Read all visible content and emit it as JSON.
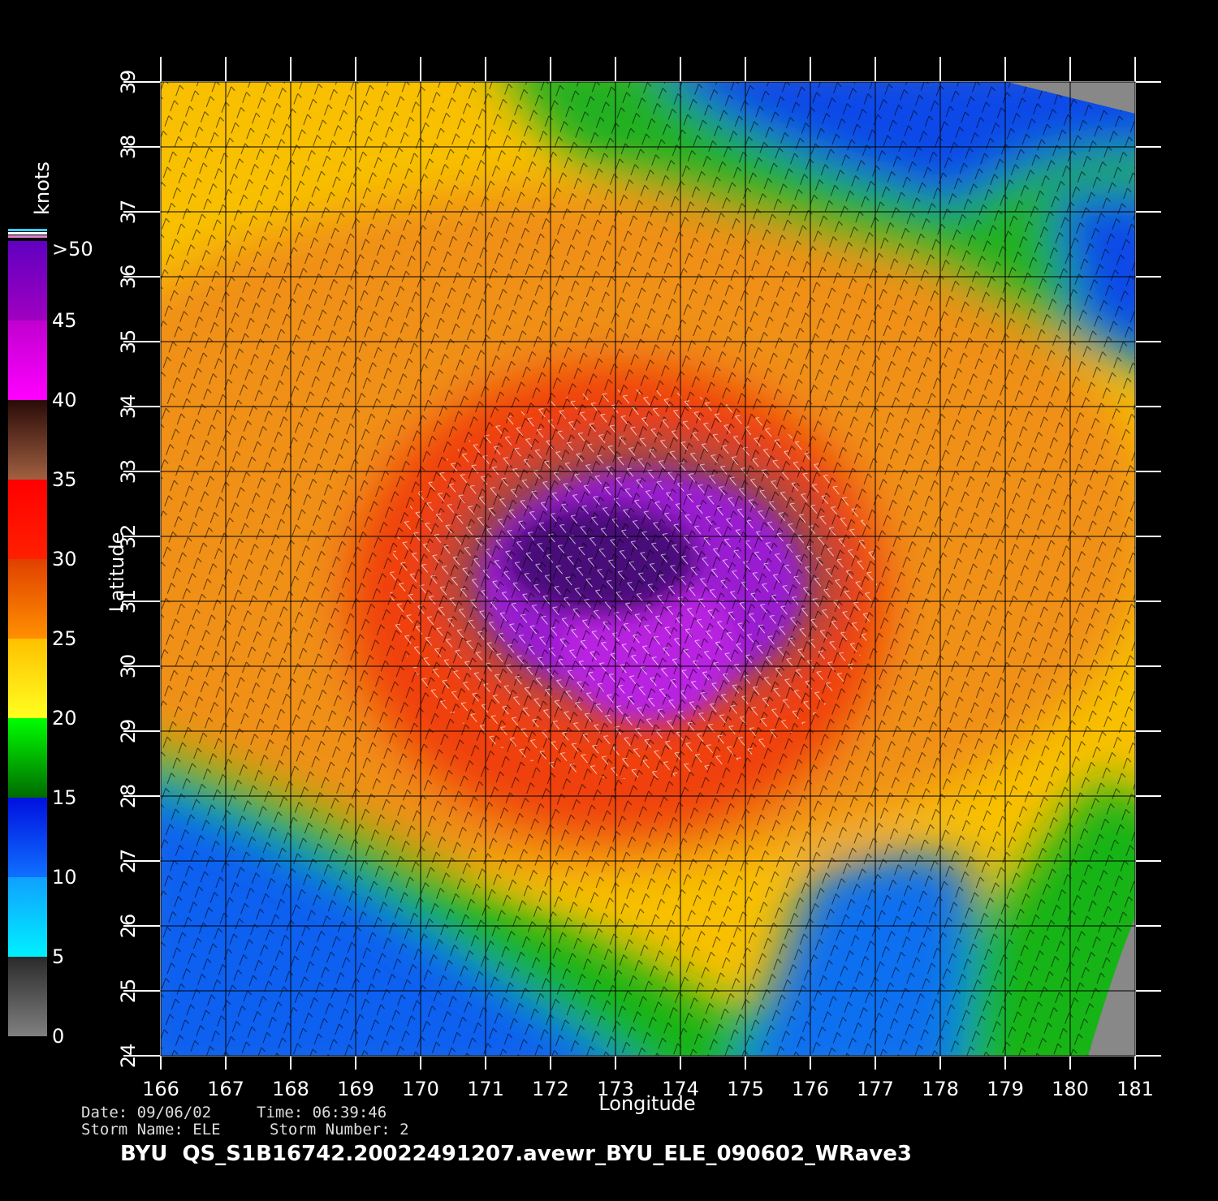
{
  "map": {
    "xlabel": "Longitude",
    "ylabel": "Latitude",
    "xlim": [
      166,
      181
    ],
    "ylim": [
      24,
      39
    ],
    "xticks": [
      166,
      167,
      168,
      169,
      170,
      171,
      172,
      173,
      174,
      175,
      176,
      177,
      178,
      179,
      180,
      181
    ],
    "yticks": [
      24,
      25,
      26,
      27,
      28,
      29,
      30,
      31,
      32,
      33,
      34,
      35,
      36,
      37,
      38,
      39
    ]
  },
  "colorbar": {
    "title": "knots",
    "clim": [
      0,
      50
    ],
    "ticks": [
      0,
      5,
      10,
      15,
      20,
      25,
      30,
      35,
      40,
      45,
      {
        "value": 50,
        "label": ">50"
      }
    ]
  },
  "info": {
    "date": "Date: 09/06/02",
    "time": "Time: 06:39:46",
    "storm_name": "Storm Name: ELE",
    "storm_number": "Storm Number: 2",
    "title": "BYU  QS_S1B16742.20022491207.avewr_BYU_ELE_090602_WRave3"
  }
}
